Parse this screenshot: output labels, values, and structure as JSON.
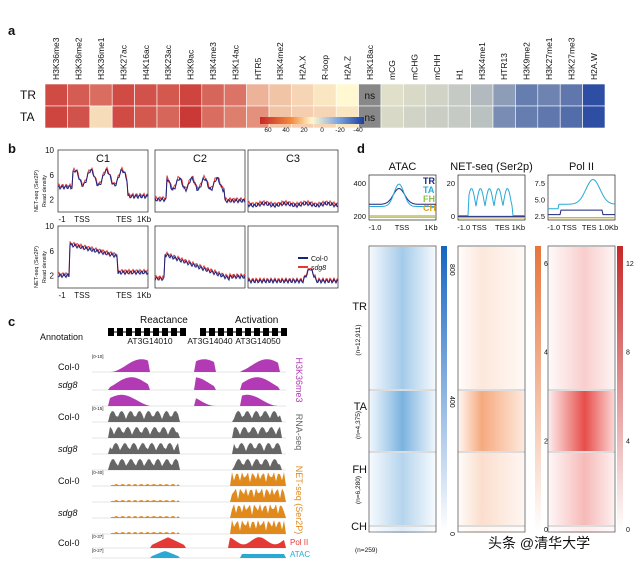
{
  "panel_labels": [
    "a",
    "b",
    "c",
    "d"
  ],
  "heatmap": {
    "columns": [
      "H3K36me3",
      "H3K36me2",
      "H3K36me1",
      "H3K27ac",
      "H4K16ac",
      "H3K23ac",
      "H3K9ac",
      "H3K4me3",
      "H3K14ac",
      "HTR5",
      "H3K4me2",
      "H2A.X",
      "R-loop",
      "H2A.Z",
      "H3K18ac",
      "mCG",
      "mCHG",
      "mCHH",
      "H1",
      "H3K4me1",
      "HTR13",
      "H3K9me2",
      "H3K27me1",
      "H3K27me3",
      "H2A.W"
    ],
    "rows": [
      {
        "label": "TR",
        "values": [
          50,
          45,
          40,
          50,
          48,
          46,
          52,
          42,
          38,
          20,
          15,
          10,
          5,
          0,
          "ns",
          -8,
          -10,
          -12,
          -15,
          -20,
          -30,
          -40,
          -38,
          -42,
          -55
        ]
      },
      {
        "label": "TA",
        "values": [
          52,
          48,
          8,
          50,
          46,
          42,
          55,
          40,
          35,
          30,
          15,
          12,
          10,
          5,
          "ns",
          -10,
          -12,
          -14,
          -15,
          -18,
          -35,
          -40,
          -42,
          -45,
          -55
        ]
      }
    ],
    "ns_label": "ns",
    "colorbar_ticks": [
      "60",
      "40",
      "20",
      "0",
      "-20",
      "-40"
    ],
    "colors": {
      "pos": "#c62828",
      "mid": "#fff8d0",
      "neg": "#1a3f9e"
    }
  },
  "panel_b": {
    "columns": [
      "C1",
      "C2",
      "C3"
    ],
    "y_axis_label": "NET-seq (Ser2P)\nRead density",
    "rows": [
      {
        "ylim": [
          0,
          10
        ],
        "yticks": [
          "10",
          "6",
          "2"
        ]
      },
      {
        "ylim": [
          0,
          10
        ],
        "yticks": [
          "10",
          "6",
          "2"
        ]
      }
    ],
    "xticks_first": [
      "-1",
      "TSS",
      "TES",
      "1Kb"
    ],
    "legend": [
      {
        "name": "Col-0",
        "color": "#1a237e"
      },
      {
        "name": "sdg8",
        "color": "#e53935"
      }
    ]
  },
  "panel_c": {
    "annotation_label": "Annotation",
    "region_labels": [
      "Reactance",
      "Activation"
    ],
    "genes": [
      "AT3G14010",
      "AT3G14040",
      "AT3G14050"
    ],
    "tracks": [
      {
        "sample": "Col-0",
        "scale": "[0-10]",
        "group": "H3K36me3",
        "color": "#b23bb5"
      },
      {
        "sample": "sdg8",
        "scale": "",
        "group": "H3K36me3",
        "color": "#b23bb5"
      },
      {
        "sample": "Col-0",
        "scale": "[0-15]",
        "group": "RNA-seq",
        "color": "#666666"
      },
      {
        "sample": "sdg8",
        "scale": "",
        "group": "RNA-seq",
        "color": "#666666"
      },
      {
        "sample": "Col-0",
        "scale": "[0-40]",
        "group": "NET-seq (Ser2P)",
        "color": "#e08a1e"
      },
      {
        "sample": "sdg8",
        "scale": "",
        "group": "NET-seq (Ser2P)",
        "color": "#e08a1e"
      },
      {
        "sample": "Col-0",
        "scale": "[0-37]",
        "group": "Pol II",
        "color": "#e53935"
      },
      {
        "sample": "",
        "scale": "[0-27]",
        "group": "ATAC",
        "color": "#29a9d4"
      }
    ],
    "group_labels": [
      "H3K36me3",
      "RNA-seq",
      "NET-seq (Ser2P)",
      "Pol II",
      "ATAC"
    ]
  },
  "panel_d": {
    "columns": [
      {
        "title": "ATAC",
        "yticks": [
          "400",
          "200"
        ],
        "xticks": [
          "-1.0",
          "TSS",
          "1Kb"
        ],
        "colorbar": [
          "800",
          "400",
          "0"
        ]
      },
      {
        "title": "NET-seq (Ser2p)",
        "yticks": [
          "20",
          "0"
        ],
        "xticks": [
          "-1.0 TSS",
          "TES 1Kb"
        ],
        "colorbar": [
          "6",
          "4",
          "2",
          "0"
        ]
      },
      {
        "title": "Pol II",
        "yticks": [
          "7.5",
          "5.0",
          "2.5"
        ],
        "xticks": [
          "-1.0 TSS",
          "TES 1.0Kb"
        ],
        "colorbar": [
          "12",
          "8",
          "4",
          "0"
        ]
      }
    ],
    "legend": [
      {
        "name": "TR",
        "color": "#1a237e"
      },
      {
        "name": "TA",
        "color": "#29a9d4"
      },
      {
        "name": "FH",
        "color": "#8bc34a"
      },
      {
        "name": "CH",
        "color": "#e0a020"
      }
    ],
    "clusters": [
      {
        "label": "TR",
        "n": "(n=12,911)"
      },
      {
        "label": "TA",
        "n": "(n=4,375)"
      },
      {
        "label": "FH",
        "n": "(n=6,280)"
      },
      {
        "label": "CH",
        "n": "(n=259)"
      }
    ]
  },
  "watermark": "头条 @清华大学"
}
